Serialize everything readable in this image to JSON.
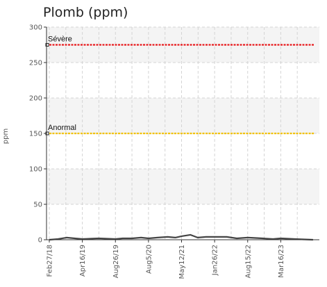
{
  "chart_data": {
    "type": "line",
    "title": "Plomb (ppm)",
    "xlabel": "",
    "ylabel": "ppm",
    "ylim": [
      0,
      300
    ],
    "yticks": [
      0,
      50,
      100,
      150,
      200,
      250,
      300
    ],
    "xticks": [
      "Feb27/18",
      "Apr16/19",
      "Aug26/19",
      "Aug5/20",
      "May12/21",
      "Jan26/22",
      "Aug15/22",
      "Mar16/23"
    ],
    "grid": true,
    "thresholds": [
      {
        "label": "Sévère",
        "value": 275,
        "color": "#e8191c"
      },
      {
        "label": "Anormal",
        "value": 150,
        "color": "#f2c200"
      }
    ],
    "series": [
      {
        "color": "#444444",
        "points": [
          {
            "x": "2018-02-27",
            "y": 0
          },
          {
            "x": "2018-06-15",
            "y": 1
          },
          {
            "x": "2018-10-01",
            "y": 3
          },
          {
            "x": "2019-01-10",
            "y": 2
          },
          {
            "x": "2019-04-16",
            "y": 1
          },
          {
            "x": "2019-06-20",
            "y": 2
          },
          {
            "x": "2019-08-26",
            "y": 1
          },
          {
            "x": "2019-11-10",
            "y": 2
          },
          {
            "x": "2020-02-15",
            "y": 2
          },
          {
            "x": "2020-05-20",
            "y": 3
          },
          {
            "x": "2020-08-05",
            "y": 2
          },
          {
            "x": "2020-10-20",
            "y": 3
          },
          {
            "x": "2021-01-15",
            "y": 4
          },
          {
            "x": "2021-03-20",
            "y": 3
          },
          {
            "x": "2021-05-12",
            "y": 5
          },
          {
            "x": "2021-07-20",
            "y": 7
          },
          {
            "x": "2021-09-15",
            "y": 3
          },
          {
            "x": "2021-11-20",
            "y": 4
          },
          {
            "x": "2022-01-26",
            "y": 4
          },
          {
            "x": "2022-04-10",
            "y": 4
          },
          {
            "x": "2022-06-10",
            "y": 2
          },
          {
            "x": "2022-08-15",
            "y": 3
          },
          {
            "x": "2022-11-20",
            "y": 2
          },
          {
            "x": "2023-01-25",
            "y": 1
          },
          {
            "x": "2023-03-16",
            "y": 2
          },
          {
            "x": "2023-06-15",
            "y": 1
          },
          {
            "x": "2023-10-10",
            "y": 0
          }
        ]
      }
    ]
  },
  "colors": {
    "band": "#f4f4f4",
    "grid": "#d4d4d4",
    "axis": "#333333"
  }
}
